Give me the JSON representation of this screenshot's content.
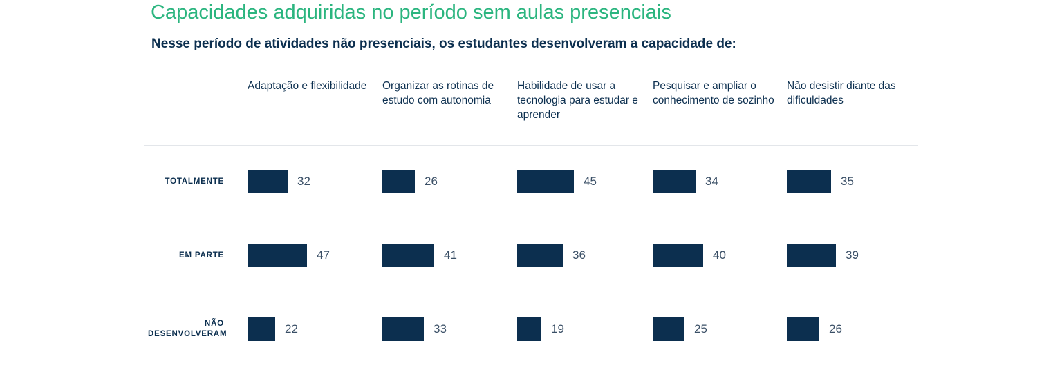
{
  "chart_data": {
    "type": "bar",
    "title": "Capacidades adquiridas no período sem aulas presenciais",
    "subtitle": "Nesse período de atividades não presenciais, os estudantes desenvolveram a capacidade de:",
    "categories": [
      "Adaptação e flexibilidade",
      "Organizar as rotinas de estudo com autonomia",
      "Habilidade de usar a tecnologia para estudar e aprender",
      "Pesquisar e ampliar o conhecimento de sozinho",
      "Não desistir diante das dificuldades"
    ],
    "series": [
      {
        "name": "TOTALMENTE",
        "values": [
          32,
          26,
          45,
          34,
          35
        ]
      },
      {
        "name": "EM PARTE",
        "values": [
          47,
          41,
          36,
          40,
          39
        ]
      },
      {
        "name": "NÃO DESENVOLVERAM",
        "values": [
          22,
          33,
          19,
          25,
          26
        ]
      }
    ],
    "colors": {
      "bar": "#0c2f4f",
      "title": "#2bb57f",
      "text": "#0c2f4f"
    },
    "grid": false,
    "legend": "none"
  }
}
